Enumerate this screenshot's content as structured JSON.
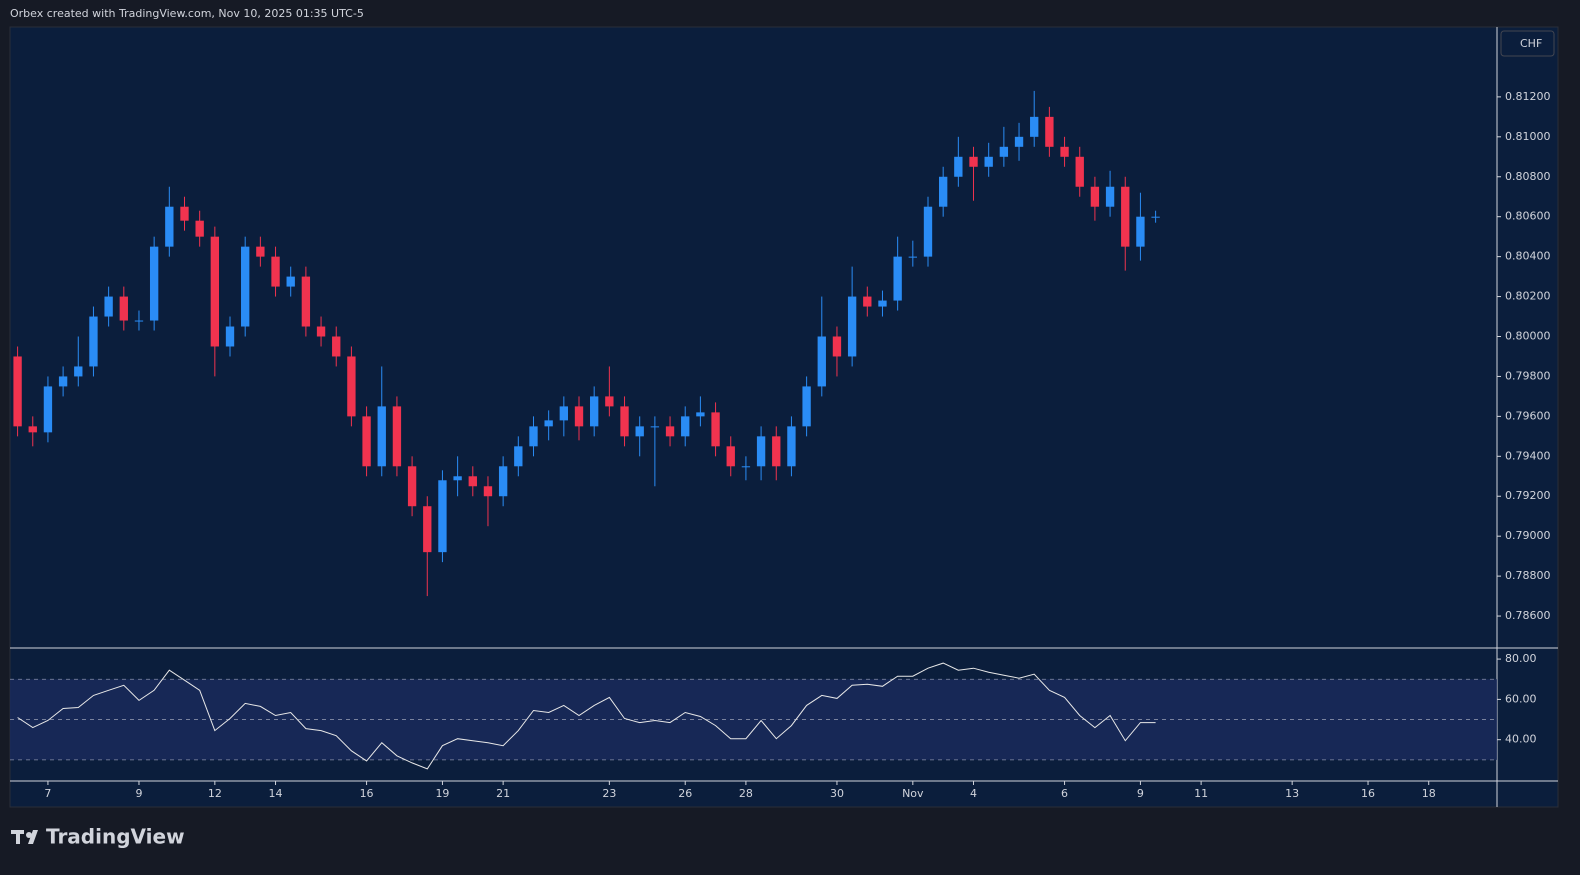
{
  "header": "Orbex created with TradingView.com, Nov 10, 2025 01:35 UTC-5",
  "currency": "CHF",
  "logo": "TradingView",
  "chart_data": [
    {
      "type": "candlestick",
      "up_color": "#2a8cf5",
      "down_color": "#f0334f",
      "x": [
        0,
        1,
        2,
        3,
        4,
        5,
        6,
        7,
        8,
        9,
        10,
        11,
        12,
        13,
        14,
        15,
        16,
        17,
        18,
        19,
        20,
        21,
        22,
        23,
        24,
        25,
        26,
        27,
        28,
        29,
        30,
        31,
        32,
        33,
        34,
        35,
        36,
        37,
        38,
        39,
        40,
        41,
        42,
        43,
        44,
        45,
        46,
        47,
        48,
        49,
        50,
        51,
        52,
        53,
        54,
        55,
        56,
        57,
        58,
        59,
        60,
        61,
        62,
        63,
        64,
        65,
        66,
        67,
        68,
        69,
        70,
        71,
        72,
        73,
        74,
        75
      ],
      "open": [
        0.799,
        0.7955,
        0.7952,
        0.7975,
        0.798,
        0.7985,
        0.801,
        0.802,
        0.8008,
        0.8008,
        0.8045,
        0.8065,
        0.8058,
        0.805,
        0.7995,
        0.8005,
        0.8045,
        0.804,
        0.8025,
        0.803,
        0.8005,
        0.8,
        0.799,
        0.796,
        0.7935,
        0.7965,
        0.7935,
        0.7915,
        0.7892,
        0.7928,
        0.793,
        0.7925,
        0.792,
        0.7935,
        0.7945,
        0.7955,
        0.7958,
        0.7965,
        0.7955,
        0.797,
        0.7965,
        0.795,
        0.7955,
        0.7955,
        0.795,
        0.796,
        0.7962,
        0.7945,
        0.7935,
        0.7935,
        0.795,
        0.7935,
        0.7955,
        0.7975,
        0.8,
        0.799,
        0.802,
        0.8015,
        0.8018,
        0.804,
        0.804,
        0.8065,
        0.808,
        0.809,
        0.8085,
        0.809,
        0.8095,
        0.81,
        0.811,
        0.8095,
        0.809,
        0.8075,
        0.8065,
        0.8075,
        0.8045,
        0.806
      ],
      "high": [
        0.7995,
        0.796,
        0.798,
        0.7985,
        0.8,
        0.8015,
        0.8025,
        0.8025,
        0.8013,
        0.805,
        0.8075,
        0.807,
        0.8063,
        0.8055,
        0.801,
        0.805,
        0.805,
        0.8045,
        0.8035,
        0.8035,
        0.801,
        0.8005,
        0.7995,
        0.7965,
        0.7985,
        0.797,
        0.794,
        0.792,
        0.7933,
        0.794,
        0.7935,
        0.793,
        0.794,
        0.795,
        0.796,
        0.7963,
        0.797,
        0.797,
        0.7975,
        0.7985,
        0.797,
        0.796,
        0.796,
        0.796,
        0.7965,
        0.797,
        0.7967,
        0.795,
        0.794,
        0.7955,
        0.7955,
        0.796,
        0.798,
        0.802,
        0.8005,
        0.8035,
        0.8025,
        0.8023,
        0.805,
        0.8048,
        0.807,
        0.8085,
        0.81,
        0.8095,
        0.8097,
        0.8105,
        0.8107,
        0.8123,
        0.8115,
        0.81,
        0.8095,
        0.808,
        0.8083,
        0.808,
        0.8072,
        0.8063
      ],
      "low": [
        0.795,
        0.7945,
        0.7947,
        0.797,
        0.7975,
        0.798,
        0.8005,
        0.8003,
        0.8003,
        0.8003,
        0.804,
        0.8053,
        0.8045,
        0.798,
        0.799,
        0.8,
        0.8035,
        0.802,
        0.802,
        0.8,
        0.7995,
        0.7985,
        0.7955,
        0.793,
        0.793,
        0.793,
        0.791,
        0.787,
        0.7887,
        0.792,
        0.792,
        0.7905,
        0.7915,
        0.793,
        0.794,
        0.7948,
        0.795,
        0.7948,
        0.795,
        0.796,
        0.7945,
        0.794,
        0.7925,
        0.7945,
        0.7945,
        0.7955,
        0.794,
        0.793,
        0.7928,
        0.7928,
        0.7928,
        0.793,
        0.795,
        0.797,
        0.798,
        0.7985,
        0.801,
        0.801,
        0.8013,
        0.8035,
        0.8035,
        0.806,
        0.8075,
        0.8068,
        0.808,
        0.8085,
        0.8088,
        0.8095,
        0.809,
        0.8085,
        0.807,
        0.8058,
        0.806,
        0.8033,
        0.8038,
        0.8057
      ],
      "close": [
        0.7955,
        0.7952,
        0.7975,
        0.798,
        0.7985,
        0.801,
        0.802,
        0.8008,
        0.8008,
        0.8045,
        0.8065,
        0.8058,
        0.805,
        0.7995,
        0.8005,
        0.8045,
        0.804,
        0.8025,
        0.803,
        0.8005,
        0.8,
        0.799,
        0.796,
        0.7935,
        0.7965,
        0.7935,
        0.7915,
        0.7892,
        0.7928,
        0.793,
        0.7925,
        0.792,
        0.7935,
        0.7945,
        0.7955,
        0.7958,
        0.7965,
        0.7955,
        0.797,
        0.7965,
        0.795,
        0.7955,
        0.7955,
        0.795,
        0.796,
        0.7962,
        0.7945,
        0.7935,
        0.7935,
        0.795,
        0.7935,
        0.7955,
        0.7975,
        0.8,
        0.799,
        0.802,
        0.8015,
        0.8018,
        0.804,
        0.804,
        0.8065,
        0.808,
        0.809,
        0.8085,
        0.809,
        0.8095,
        0.81,
        0.811,
        0.8095,
        0.809,
        0.8075,
        0.8065,
        0.8075,
        0.8045,
        0.806,
        0.806
      ],
      "xlim": [
        -0.5,
        97.5
      ],
      "ylim": [
        0.7844,
        0.8155
      ],
      "yticks": [
        {
          "value": 0.786,
          "label": "0.78600"
        },
        {
          "value": 0.788,
          "label": "0.78800"
        },
        {
          "value": 0.79,
          "label": "0.79000"
        },
        {
          "value": 0.792,
          "label": "0.79200"
        },
        {
          "value": 0.794,
          "label": "0.79400"
        },
        {
          "value": 0.796,
          "label": "0.79600"
        },
        {
          "value": 0.798,
          "label": "0.79800"
        },
        {
          "value": 0.8,
          "label": "0.80000"
        },
        {
          "value": 0.802,
          "label": "0.80200"
        },
        {
          "value": 0.804,
          "label": "0.80400"
        },
        {
          "value": 0.806,
          "label": "0.80600"
        },
        {
          "value": 0.808,
          "label": "0.80800"
        },
        {
          "value": 0.81,
          "label": "0.81000"
        },
        {
          "value": 0.812,
          "label": "0.81200"
        }
      ]
    },
    {
      "type": "line",
      "color": "#e8e8e8",
      "band": [
        30,
        70
      ],
      "levels": [
        30,
        50,
        70
      ],
      "x": [
        0,
        1,
        2,
        3,
        4,
        5,
        6,
        7,
        8,
        9,
        10,
        11,
        12,
        13,
        14,
        15,
        16,
        17,
        18,
        19,
        20,
        21,
        22,
        23,
        24,
        25,
        26,
        27,
        28,
        29,
        30,
        31,
        32,
        33,
        34,
        35,
        36,
        37,
        38,
        39,
        40,
        41,
        42,
        43,
        44,
        45,
        46,
        47,
        48,
        49,
        50,
        51,
        52,
        53,
        54,
        55,
        56,
        57,
        58,
        59,
        60,
        61,
        62,
        63,
        64,
        65,
        66,
        67,
        68,
        69,
        70,
        71,
        72,
        73,
        74,
        75
      ],
      "values": [
        51,
        46,
        49.5,
        55.5,
        56,
        62,
        64.5,
        67,
        59.5,
        64.5,
        74.5,
        69.5,
        64.5,
        44.5,
        50.5,
        58,
        56.5,
        52,
        53.5,
        45.5,
        44.5,
        42,
        34.5,
        29.5,
        38.5,
        32,
        28.5,
        25.5,
        37,
        40.5,
        39.5,
        38.5,
        37,
        44.5,
        54.5,
        53.5,
        57,
        52,
        57,
        61,
        50.5,
        48.5,
        49.5,
        48.5,
        53.5,
        51.5,
        47,
        40.5,
        40.5,
        49.5,
        40.5,
        47,
        57,
        62,
        60.5,
        67,
        67.5,
        66.5,
        71.5,
        71.5,
        75.5,
        78,
        74.5,
        75.5,
        73.5,
        72,
        70.5,
        72.5,
        64.5,
        61,
        52,
        46,
        52,
        39.5,
        48.5,
        48.5
      ],
      "xlim": [
        -0.5,
        97.5
      ],
      "ylim": [
        20,
        85.5
      ],
      "yticks": [
        {
          "value": 40,
          "label": "40.00"
        },
        {
          "value": 60,
          "label": "60.00"
        },
        {
          "value": 80,
          "label": "80.00"
        }
      ],
      "xticks": [
        {
          "value": 2,
          "label": "7"
        },
        {
          "value": 8,
          "label": "9"
        },
        {
          "value": 13,
          "label": "12"
        },
        {
          "value": 17,
          "label": "14"
        },
        {
          "value": 23,
          "label": "16"
        },
        {
          "value": 28,
          "label": "19"
        },
        {
          "value": 32,
          "label": "21"
        },
        {
          "value": 39,
          "label": "23"
        },
        {
          "value": 44,
          "label": "26"
        },
        {
          "value": 48,
          "label": "28"
        },
        {
          "value": 54,
          "label": "30"
        },
        {
          "value": 59,
          "label": "Nov"
        },
        {
          "value": 63,
          "label": "4"
        },
        {
          "value": 69,
          "label": "6"
        },
        {
          "value": 74,
          "label": "9"
        },
        {
          "value": 78,
          "label": "11"
        },
        {
          "value": 84,
          "label": "13"
        },
        {
          "value": 89,
          "label": "16"
        },
        {
          "value": 93,
          "label": "18"
        }
      ]
    }
  ]
}
